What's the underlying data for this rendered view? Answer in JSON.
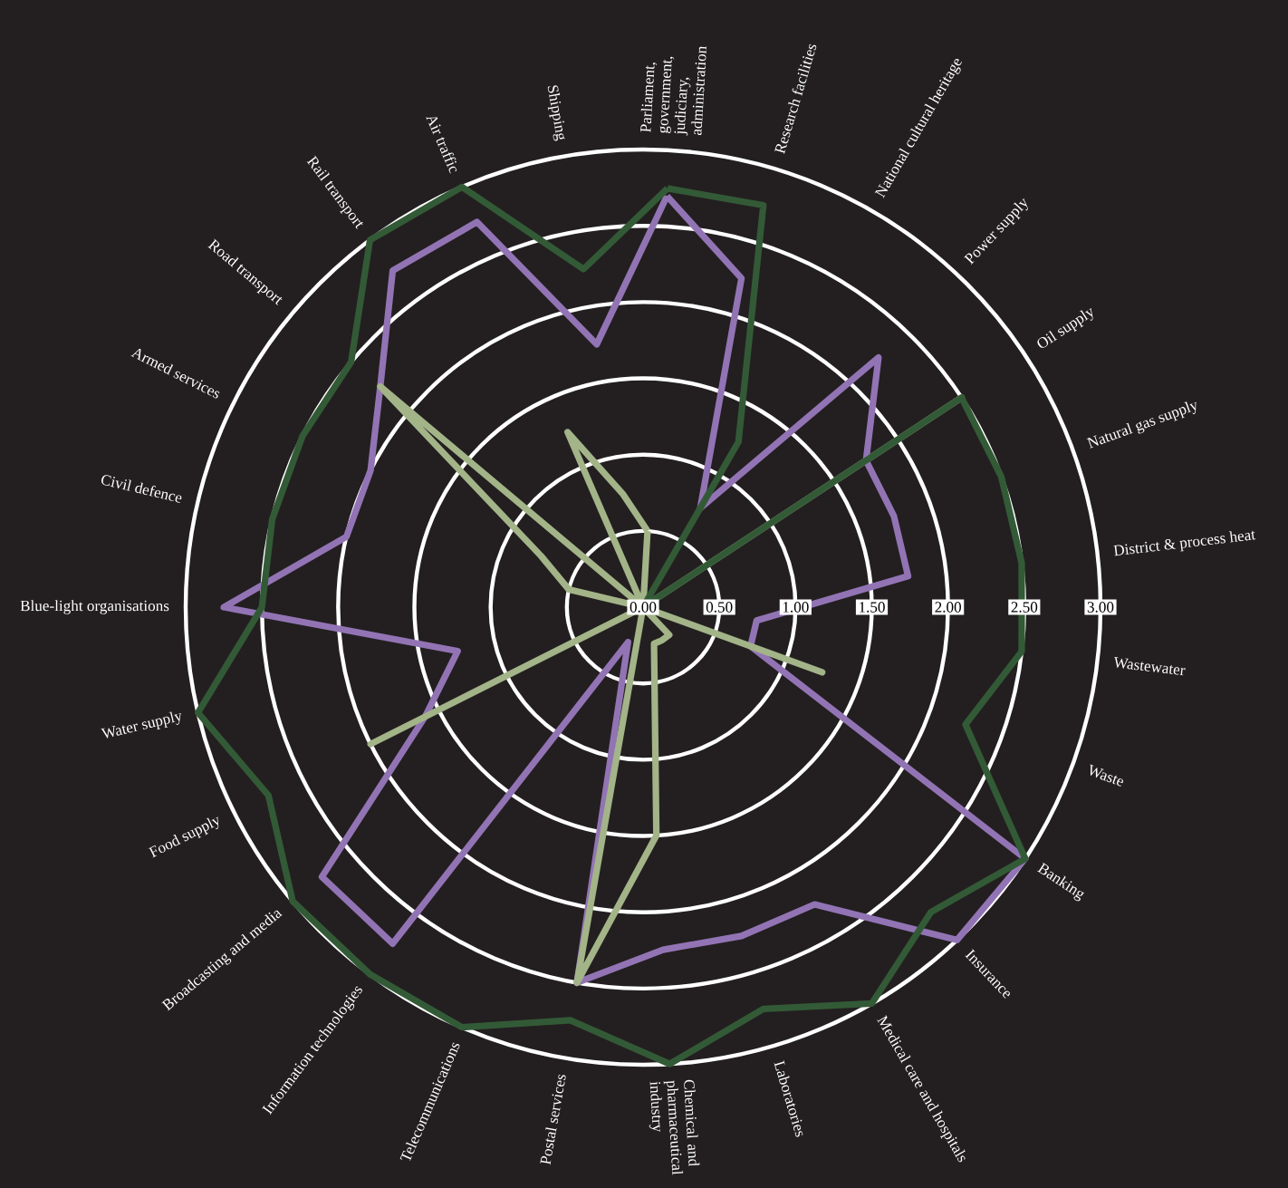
{
  "chart_data": {
    "type": "radar",
    "categories": [
      "Parliament, government, judiciary, administration",
      "Research facilities",
      "National cultural heritage",
      "Power supply",
      "Oil supply",
      "Natural gas supply",
      "District & process heat",
      "Wastewater",
      "Waste",
      "Banking",
      "Insurance",
      "Medical care and hospitals",
      "Laboratories",
      "Chemical and pharmaceutical industry",
      "Postal services",
      "Telecommunications",
      "Information technologies",
      "Broadcasting and media",
      "Food supply",
      "Water supply",
      "Blue-light organisations",
      "Civil defence",
      "Armed services",
      "Road transport",
      "Rail transport",
      "Air traffic",
      "Shipping"
    ],
    "series": [
      {
        "color": "#9274b5",
        "values": [
          2.7,
          2.25,
          0.75,
          2.25,
          1.75,
          1.75,
          1.75,
          0.75,
          0.75,
          3.0,
          3.0,
          2.25,
          2.25,
          2.25,
          2.5,
          0.25,
          2.75,
          2.75,
          1.6,
          1.25,
          2.75,
          2.0,
          2.0,
          2.25,
          2.75,
          2.75,
          1.75
        ]
      },
      {
        "color": "#a3b488",
        "values": [
          0.5,
          0,
          0,
          0,
          2.5,
          0,
          0,
          0,
          1.25,
          0,
          0.25,
          0.25,
          0.25,
          1.5,
          2.5,
          0,
          0,
          0,
          2.0,
          0,
          0,
          0.5,
          0.75,
          2.25,
          0,
          1.25,
          0.75
        ]
      },
      {
        "color": "#335a36",
        "values": [
          2.75,
          2.75,
          1.25,
          0,
          2.5,
          2.5,
          2.5,
          2.5,
          2.25,
          3.0,
          2.75,
          3.0,
          2.75,
          3.0,
          2.75,
          3.0,
          3.0,
          3.0,
          2.75,
          3.0,
          2.5,
          2.5,
          2.5,
          2.5,
          3.0,
          3.0,
          2.25
        ]
      }
    ],
    "ylim": [
      0,
      3
    ],
    "yticks": [
      {
        "value": 0,
        "label": "0.00"
      },
      {
        "value": 0.5,
        "label": "0.50"
      },
      {
        "value": 1,
        "label": "1.00"
      },
      {
        "value": 1.5,
        "label": "1.50"
      },
      {
        "value": 2,
        "label": "2.00"
      },
      {
        "value": 2.5,
        "label": "2.50"
      },
      {
        "value": 3,
        "label": "3.00"
      }
    ],
    "grid": true
  }
}
